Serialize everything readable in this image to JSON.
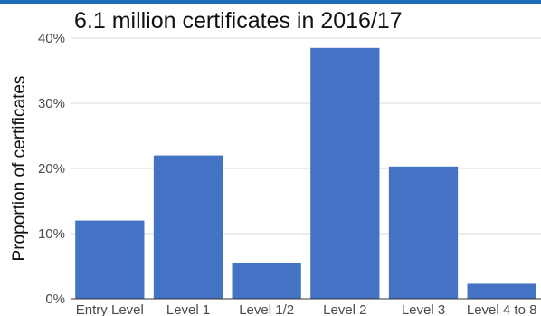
{
  "chart_data": {
    "type": "bar",
    "title": "6.1 million certificates in 2016/17",
    "xlabel": "",
    "ylabel": "Proportion of certificates",
    "categories": [
      "Entry Level",
      "Level 1",
      "Level 1/2",
      "Level 2",
      "Level 3",
      "Level 4 to 8"
    ],
    "values": [
      12,
      22,
      5.5,
      38.5,
      20.3,
      2.3
    ],
    "ylim": [
      0,
      40
    ],
    "yticks": [
      0,
      10,
      20,
      30,
      40
    ],
    "ytick_labels": [
      "0%",
      "10%",
      "20%",
      "30%",
      "40%"
    ],
    "bar_color": "#4472c4",
    "grid": true,
    "legend": "none"
  },
  "colors": {
    "accent_bar": "#1f6fb8",
    "gridline": "#d9d9d9",
    "axis": "#333333"
  }
}
